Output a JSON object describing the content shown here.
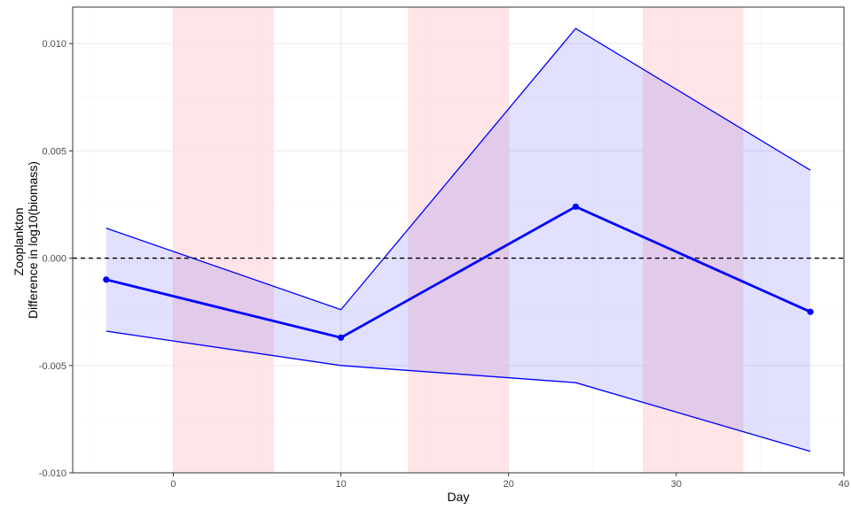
{
  "chart_data": {
    "type": "line",
    "xlabel": "Day",
    "ylabel": [
      "Zooplankton",
      "Difference in log10(biomass)"
    ],
    "xlim": [
      -6,
      40
    ],
    "ylim": [
      -0.01,
      0.0117
    ],
    "x_ticks": [
      0,
      10,
      20,
      30,
      40
    ],
    "x_tick_labels": [
      "0",
      "10",
      "20",
      "30",
      "40"
    ],
    "y_ticks": [
      -0.01,
      -0.005,
      0.0,
      0.005,
      0.01
    ],
    "y_tick_labels": [
      "-0.010",
      "-0.005",
      "0.000",
      "0.005",
      "0.010"
    ],
    "grid": true,
    "shaded_periods": [
      [
        0,
        6
      ],
      [
        14,
        20
      ],
      [
        28,
        34
      ]
    ],
    "reference_line_y": 0,
    "series": [
      {
        "x": [
          -4,
          10,
          24,
          38
        ],
        "mean": [
          -0.001,
          -0.0037,
          0.0024,
          -0.0025
        ],
        "upper": [
          0.0014,
          -0.0024,
          0.0107,
          0.0041
        ],
        "lower": [
          -0.0034,
          -0.005,
          -0.0058,
          -0.009
        ]
      }
    ],
    "colors": {
      "line": "#0000ff",
      "ribbon_fill": "#e1e1fe",
      "shade": "#ffe1e4",
      "grid_major": "#ebebeb",
      "grid_minor": "#f5f5f5",
      "reference": "#000000"
    }
  }
}
